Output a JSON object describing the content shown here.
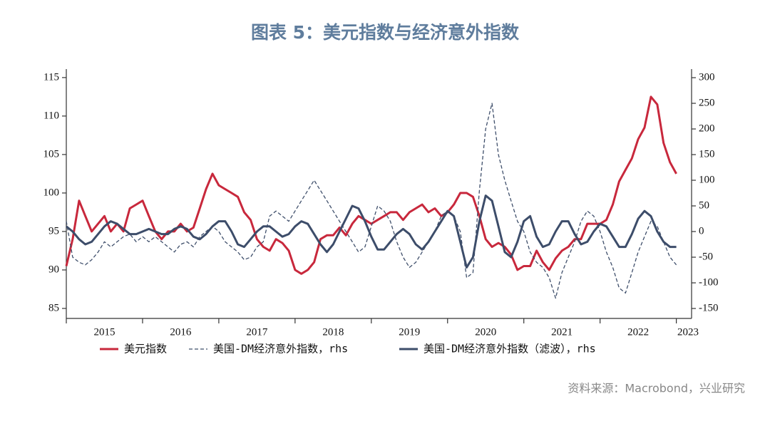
{
  "chart_data": {
    "type": "line",
    "title": "图表 5：美元指数与经济意外指数",
    "source": "资料来源：Macrobond，兴业研究",
    "x": [
      2015,
      2015.083,
      2015.167,
      2015.25,
      2015.333,
      2015.417,
      2015.5,
      2015.583,
      2015.667,
      2015.75,
      2015.833,
      2015.917,
      2016,
      2016.083,
      2016.167,
      2016.25,
      2016.333,
      2016.417,
      2016.5,
      2016.583,
      2016.667,
      2016.75,
      2016.833,
      2016.917,
      2017,
      2017.083,
      2017.167,
      2017.25,
      2017.333,
      2017.417,
      2017.5,
      2017.583,
      2017.667,
      2017.75,
      2017.833,
      2017.917,
      2018,
      2018.083,
      2018.167,
      2018.25,
      2018.333,
      2018.417,
      2018.5,
      2018.583,
      2018.667,
      2018.75,
      2018.833,
      2018.917,
      2019,
      2019.083,
      2019.167,
      2019.25,
      2019.333,
      2019.417,
      2019.5,
      2019.583,
      2019.667,
      2019.75,
      2019.833,
      2019.917,
      2020,
      2020.083,
      2020.167,
      2020.25,
      2020.333,
      2020.417,
      2020.5,
      2020.583,
      2020.667,
      2020.75,
      2020.833,
      2020.917,
      2021,
      2021.083,
      2021.167,
      2021.25,
      2021.333,
      2021.417,
      2021.5,
      2021.583,
      2021.667,
      2021.75,
      2021.833,
      2021.917,
      2022,
      2022.083,
      2022.167,
      2022.25,
      2022.333,
      2022.417,
      2022.5,
      2022.583,
      2022.667,
      2022.75,
      2022.833,
      2022.917,
      2023
    ],
    "series": [
      {
        "name": "美元指数",
        "color": "#c8283c",
        "line_style": "solid",
        "width": 3,
        "values": [
          90.5,
          94,
          99,
          97,
          95,
          96,
          97,
          95,
          96,
          95,
          98,
          98.5,
          99,
          97,
          95,
          94,
          95,
          95,
          96,
          95,
          95.5,
          98,
          100.5,
          102.5,
          101,
          100.5,
          100,
          99.5,
          97.5,
          96.5,
          94,
          93,
          92.5,
          94,
          93.5,
          92.5,
          90,
          89.5,
          90,
          91,
          94,
          94.5,
          94.5,
          95.5,
          94.5,
          96,
          97,
          96.5,
          96,
          96.5,
          97,
          97.5,
          97.5,
          96.5,
          97.5,
          98,
          98.5,
          97.5,
          98,
          97,
          97.5,
          98.5,
          100,
          100,
          99.5,
          97,
          94,
          93,
          93.5,
          93,
          92,
          90,
          90.5,
          90.5,
          92.5,
          91,
          90,
          91.5,
          92.5,
          93,
          94,
          94,
          96,
          96,
          96,
          96.5,
          98.5,
          101.5,
          103,
          104.5,
          107,
          108.5,
          112.5,
          111.5,
          106.5,
          104,
          102.5
        ]
      },
      {
        "name": "美国-DM经济意外指数，rhs",
        "color": "#3f4f6b",
        "line_style": "dashed",
        "width": 1.3,
        "axis": "y2",
        "values": [
          20,
          -50,
          -60,
          -65,
          -55,
          -40,
          -20,
          -30,
          -20,
          -10,
          -5,
          -20,
          -10,
          -20,
          -10,
          -20,
          -30,
          -40,
          -25,
          -20,
          -30,
          -10,
          0,
          10,
          0,
          -20,
          -30,
          -40,
          -55,
          -50,
          -30,
          -20,
          30,
          40,
          30,
          20,
          40,
          60,
          80,
          100,
          80,
          60,
          40,
          20,
          0,
          -20,
          -40,
          -30,
          10,
          50,
          40,
          20,
          -20,
          -50,
          -70,
          -60,
          -40,
          -20,
          0,
          30,
          40,
          30,
          0,
          -90,
          -80,
          80,
          200,
          250,
          150,
          100,
          60,
          20,
          0,
          -40,
          -60,
          -70,
          -90,
          -130,
          -80,
          -50,
          -20,
          20,
          40,
          30,
          0,
          -40,
          -70,
          -110,
          -120,
          -80,
          -40,
          -10,
          20,
          10,
          -20,
          -50,
          -65
        ]
      },
      {
        "name": "美国-DM经济意外指数（滤波），rhs",
        "color": "#3d4d6a",
        "line_style": "solid",
        "width": 3,
        "axis": "y2",
        "values": [
          10,
          0,
          -15,
          -25,
          -20,
          -5,
          10,
          20,
          15,
          5,
          -5,
          -5,
          0,
          5,
          0,
          -5,
          -5,
          5,
          10,
          5,
          -10,
          -15,
          -5,
          10,
          20,
          20,
          0,
          -25,
          -30,
          -15,
          0,
          10,
          10,
          0,
          -10,
          -5,
          10,
          20,
          15,
          -5,
          -25,
          -40,
          -25,
          0,
          25,
          50,
          45,
          20,
          -10,
          -35,
          -35,
          -20,
          -5,
          5,
          -5,
          -25,
          -35,
          -20,
          0,
          20,
          40,
          30,
          -20,
          -70,
          -50,
          20,
          70,
          60,
          10,
          -40,
          -50,
          -20,
          20,
          30,
          -10,
          -30,
          -25,
          0,
          20,
          20,
          -5,
          -25,
          -20,
          0,
          15,
          10,
          -10,
          -30,
          -30,
          -5,
          25,
          40,
          30,
          0,
          -20,
          -30,
          -30
        ]
      }
    ],
    "xlim": [
      2015,
      2023.2
    ],
    "xticks": [
      2015,
      2016,
      2017,
      2018,
      2019,
      2020,
      2021,
      2022,
      2023
    ],
    "ylim": [
      83.7,
      116.1
    ],
    "yticks": [
      85,
      90,
      95,
      100,
      105,
      110,
      115
    ],
    "y2lim": [
      -169.4,
      316.7
    ],
    "y2ticks": [
      -150,
      -100,
      -50,
      0,
      50,
      100,
      150,
      200,
      250,
      300
    ],
    "legend": "bottom"
  }
}
